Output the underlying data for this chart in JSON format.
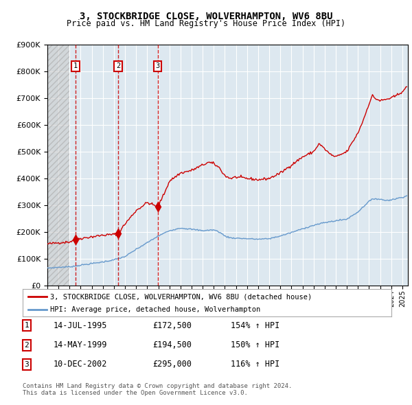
{
  "title": "3, STOCKBRIDGE CLOSE, WOLVERHAMPTON, WV6 8BU",
  "subtitle": "Price paid vs. HM Land Registry's House Price Index (HPI)",
  "sale_dates_num": [
    1995.54,
    1999.37,
    2002.94
  ],
  "sale_prices": [
    172500,
    194500,
    295000
  ],
  "sale_labels": [
    "1",
    "2",
    "3"
  ],
  "legend_red": "3, STOCKBRIDGE CLOSE, WOLVERHAMPTON, WV6 8BU (detached house)",
  "legend_blue": "HPI: Average price, detached house, Wolverhampton",
  "table_rows": [
    [
      "1",
      "14-JUL-1995",
      "£172,500",
      "154% ↑ HPI"
    ],
    [
      "2",
      "14-MAY-1999",
      "£194,500",
      "150% ↑ HPI"
    ],
    [
      "3",
      "10-DEC-2002",
      "£295,000",
      "116% ↑ HPI"
    ]
  ],
  "footer": "Contains HM Land Registry data © Crown copyright and database right 2024.\nThis data is licensed under the Open Government Licence v3.0.",
  "red_color": "#cc0000",
  "blue_color": "#6699cc",
  "bg_color": "#dde8f0",
  "grid_color": "#ffffff",
  "ylim": [
    0,
    900000
  ],
  "xlim_start": 1993.0,
  "xlim_end": 2025.5,
  "hatch_end": 1995.0,
  "red_keypoints": [
    [
      1993.0,
      155000
    ],
    [
      1994.0,
      160000
    ],
    [
      1995.0,
      163000
    ],
    [
      1995.54,
      172500
    ],
    [
      1996.0,
      176000
    ],
    [
      1997.0,
      182000
    ],
    [
      1998.0,
      188000
    ],
    [
      1999.0,
      191000
    ],
    [
      1999.37,
      194500
    ],
    [
      2000.0,
      230000
    ],
    [
      2001.0,
      280000
    ],
    [
      2002.0,
      310000
    ],
    [
      2002.94,
      295000
    ],
    [
      2003.5,
      340000
    ],
    [
      2004.0,
      390000
    ],
    [
      2005.0,
      420000
    ],
    [
      2006.0,
      430000
    ],
    [
      2007.0,
      450000
    ],
    [
      2007.5,
      460000
    ],
    [
      2008.0,
      455000
    ],
    [
      2008.5,
      440000
    ],
    [
      2009.0,
      410000
    ],
    [
      2009.5,
      400000
    ],
    [
      2010.0,
      405000
    ],
    [
      2011.0,
      400000
    ],
    [
      2012.0,
      395000
    ],
    [
      2013.0,
      400000
    ],
    [
      2014.0,
      420000
    ],
    [
      2015.0,
      450000
    ],
    [
      2016.0,
      480000
    ],
    [
      2017.0,
      500000
    ],
    [
      2017.5,
      530000
    ],
    [
      2018.0,
      510000
    ],
    [
      2018.5,
      490000
    ],
    [
      2019.0,
      480000
    ],
    [
      2020.0,
      500000
    ],
    [
      2021.0,
      570000
    ],
    [
      2021.5,
      620000
    ],
    [
      2022.0,
      680000
    ],
    [
      2022.3,
      710000
    ],
    [
      2022.5,
      700000
    ],
    [
      2023.0,
      690000
    ],
    [
      2023.5,
      695000
    ],
    [
      2024.0,
      700000
    ],
    [
      2024.5,
      710000
    ],
    [
      2025.0,
      725000
    ],
    [
      2025.4,
      740000
    ]
  ],
  "blue_keypoints": [
    [
      1993.0,
      65000
    ],
    [
      1994.0,
      68000
    ],
    [
      1995.0,
      70000
    ],
    [
      1996.0,
      76000
    ],
    [
      1997.0,
      82000
    ],
    [
      1998.0,
      88000
    ],
    [
      1999.0,
      96000
    ],
    [
      2000.0,
      108000
    ],
    [
      2001.0,
      135000
    ],
    [
      2002.0,
      160000
    ],
    [
      2003.0,
      185000
    ],
    [
      2004.0,
      205000
    ],
    [
      2005.0,
      215000
    ],
    [
      2006.0,
      210000
    ],
    [
      2007.0,
      205000
    ],
    [
      2008.0,
      208000
    ],
    [
      2008.5,
      200000
    ],
    [
      2009.0,
      185000
    ],
    [
      2009.5,
      178000
    ],
    [
      2010.0,
      177000
    ],
    [
      2011.0,
      175000
    ],
    [
      2012.0,
      173000
    ],
    [
      2013.0,
      175000
    ],
    [
      2014.0,
      185000
    ],
    [
      2015.0,
      198000
    ],
    [
      2016.0,
      212000
    ],
    [
      2017.0,
      225000
    ],
    [
      2018.0,
      235000
    ],
    [
      2019.0,
      242000
    ],
    [
      2020.0,
      248000
    ],
    [
      2021.0,
      275000
    ],
    [
      2021.5,
      295000
    ],
    [
      2022.0,
      315000
    ],
    [
      2022.5,
      325000
    ],
    [
      2023.0,
      322000
    ],
    [
      2023.5,
      318000
    ],
    [
      2024.0,
      320000
    ],
    [
      2024.5,
      325000
    ],
    [
      2025.0,
      330000
    ],
    [
      2025.4,
      335000
    ]
  ]
}
